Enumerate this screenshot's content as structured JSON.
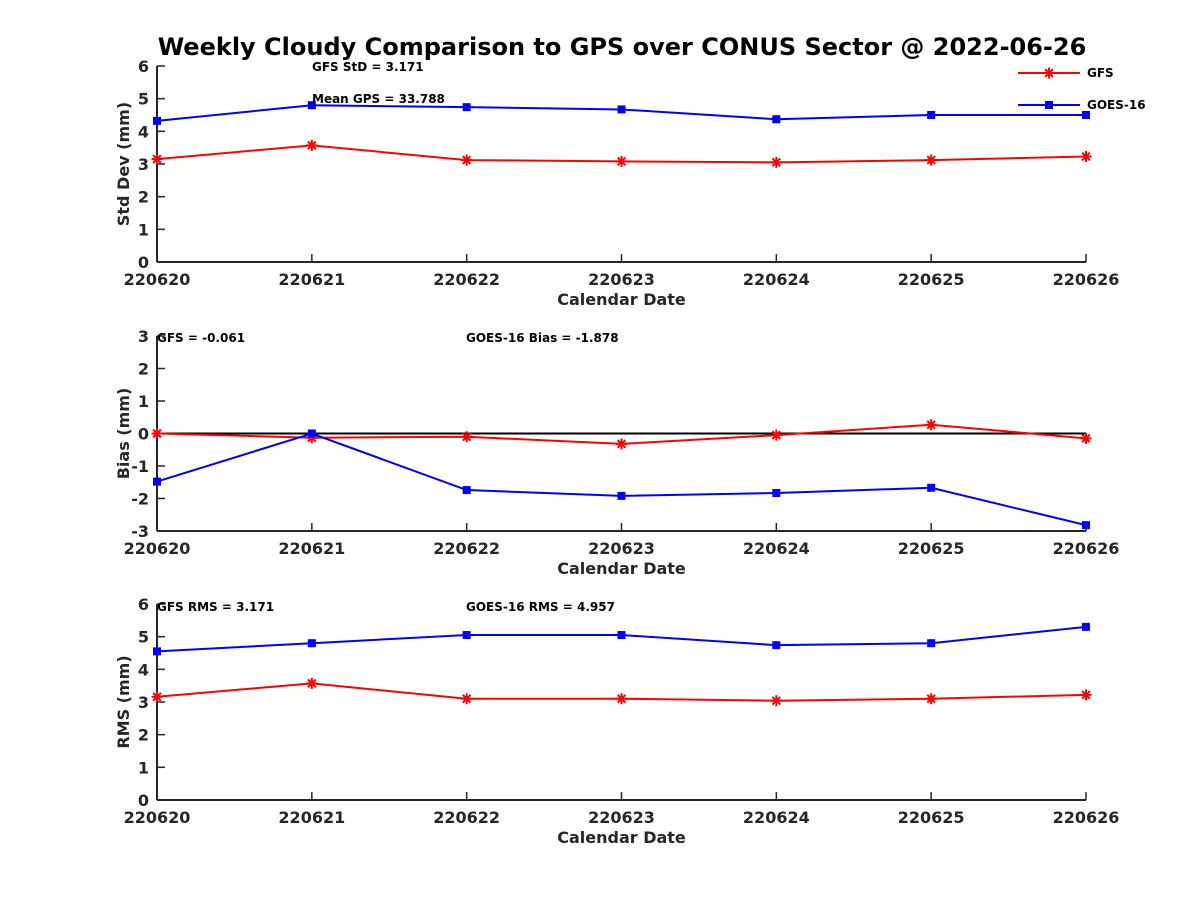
{
  "title": "Weekly Cloudy Comparison to GPS over CONUS Sector @ 2022-06-26",
  "colors": {
    "GFS": "#ff0000",
    "GOES-16": "#0000ff",
    "zero_line": "#000000",
    "axis": "#262626"
  },
  "legend": {
    "placement": "top-right",
    "entries": [
      "GFS",
      "GOES-16"
    ]
  },
  "chart_data": [
    {
      "type": "line",
      "panel": "std",
      "categories": [
        "220620",
        "220621",
        "220622",
        "220623",
        "220624",
        "220625",
        "220626"
      ],
      "xlabel": "Calendar Date",
      "ylabel": "Std Dev (mm)",
      "ylim": [
        0,
        6
      ],
      "yticks": [
        "0",
        "1",
        "2",
        "3",
        "4",
        "5",
        "6"
      ],
      "grid": false,
      "series": [
        {
          "name": "GFS",
          "marker": "asterisk",
          "values": [
            3.15,
            3.57,
            3.12,
            3.08,
            3.05,
            3.12,
            3.23
          ]
        },
        {
          "name": "GOES-16",
          "marker": "square",
          "values": [
            4.32,
            4.8,
            4.74,
            4.67,
            4.37,
            4.5,
            4.5
          ]
        }
      ],
      "annotations": [
        "GFS StD = 3.171",
        "Mean GPS = 33.788"
      ]
    },
    {
      "type": "line",
      "panel": "bias",
      "categories": [
        "220620",
        "220621",
        "220622",
        "220623",
        "220624",
        "220625",
        "220626"
      ],
      "xlabel": "Calendar Date",
      "ylabel": "Bias (mm)",
      "ylim": [
        -3,
        3
      ],
      "yticks": [
        "-3",
        "-2",
        "-1",
        "0",
        "1",
        "2",
        "3"
      ],
      "grid": false,
      "zero_line": true,
      "series": [
        {
          "name": "GFS",
          "marker": "asterisk",
          "values": [
            0.0,
            -0.13,
            -0.1,
            -0.32,
            -0.05,
            0.27,
            -0.15
          ]
        },
        {
          "name": "GOES-16",
          "marker": "square",
          "values": [
            -1.48,
            0.0,
            -1.74,
            -1.92,
            -1.83,
            -1.67,
            -2.82
          ]
        }
      ],
      "annotations": [
        "GFS = -0.061",
        "GOES-16 Bias  = -1.878"
      ]
    },
    {
      "type": "line",
      "panel": "rms",
      "categories": [
        "220620",
        "220621",
        "220622",
        "220623",
        "220624",
        "220625",
        "220626"
      ],
      "xlabel": "Calendar Date",
      "ylabel": "RMS (mm)",
      "ylim": [
        0,
        6
      ],
      "yticks": [
        "0",
        "1",
        "2",
        "3",
        "4",
        "5",
        "6"
      ],
      "grid": false,
      "series": [
        {
          "name": "GFS",
          "marker": "asterisk",
          "values": [
            3.16,
            3.57,
            3.1,
            3.1,
            3.04,
            3.1,
            3.22
          ]
        },
        {
          "name": "GOES-16",
          "marker": "square",
          "values": [
            4.55,
            4.8,
            5.05,
            5.05,
            4.74,
            4.8,
            5.3
          ]
        }
      ],
      "annotations": [
        "GFS RMS = 3.171",
        "GOES-16 RMS = 4.957"
      ]
    }
  ]
}
